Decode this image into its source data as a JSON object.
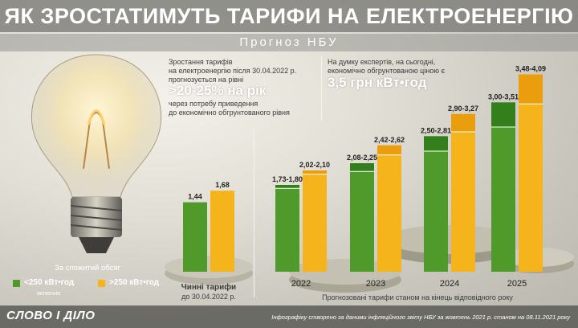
{
  "title": "ЯК ЗРОСТАТИМУТЬ ТАРИФИ НА ЕЛЕКТРОЕНЕРГІЮ",
  "subtitle": "Прогноз НБУ",
  "left_note": {
    "line1": "Зростання тарифів",
    "line2": "на електроенергію після 30.04.2022 р.",
    "line3": "прогнозується на рівні",
    "highlight": ">20-25% на рік",
    "line4": "через потребу приведення",
    "line5": "до економічно обгрунтованого рівня"
  },
  "right_note": {
    "line1": "На думку експертів, на сьогодні,",
    "line2": "економічно обгрунтованою ціною є",
    "highlight": "3,5 грн кВт•год"
  },
  "legend": {
    "title": "За спожитий обсяг",
    "green_label": "<250 кВт•год",
    "green_sub": "включно",
    "yellow_label": ">250 кВт•год"
  },
  "current_caption": {
    "line1": "Чинні тарифи",
    "line2": "до 30.04.2022 р."
  },
  "forecast_caption": "Прогнозовані тарифи станом на кінець відповідного року",
  "footer": {
    "logo": "СЛОВО І ДІЛО",
    "credit": "Інфографіку створено за даними інфляційного звіту НБУ за жовтень 2021 р. станом на 08.11.2021 року"
  },
  "colors": {
    "green": "#4f9a2a",
    "green_dark": "#2e7a1a",
    "yellow": "#f5b31c",
    "yellow_dark": "#e79a0c"
  },
  "chart_data": {
    "type": "bar",
    "series": [
      {
        "name": "<250 кВт•год",
        "color": "#4f9a2a"
      },
      {
        "name": ">250 кВт•год",
        "color": "#f5b31c"
      }
    ],
    "groups": [
      {
        "category": "",
        "green": {
          "low": 1.44,
          "high": 1.44,
          "label": "1,44"
        },
        "yellow": {
          "low": 1.68,
          "high": 1.68,
          "label": "1,68"
        }
      },
      {
        "category": "2022",
        "green": {
          "low": 1.73,
          "high": 1.8,
          "label": "1,73-1,80"
        },
        "yellow": {
          "low": 2.02,
          "high": 2.1,
          "label": "2,02-2,10"
        }
      },
      {
        "category": "2023",
        "green": {
          "low": 2.08,
          "high": 2.25,
          "label": "2,08-2,25"
        },
        "yellow": {
          "low": 2.42,
          "high": 2.62,
          "label": "2,42-2,62"
        }
      },
      {
        "category": "2024",
        "green": {
          "low": 2.5,
          "high": 2.81,
          "label": "2,50-2,81"
        },
        "yellow": {
          "low": 2.9,
          "high": 3.27,
          "label": "2,90-3,27"
        }
      },
      {
        "category": "2025",
        "green": {
          "low": 3.0,
          "high": 3.51,
          "label": "3,00-3,51"
        },
        "yellow": {
          "low": 3.48,
          "high": 4.09,
          "label": "3,48-4,09"
        }
      }
    ],
    "ylim": [
      0,
      4.4
    ]
  }
}
